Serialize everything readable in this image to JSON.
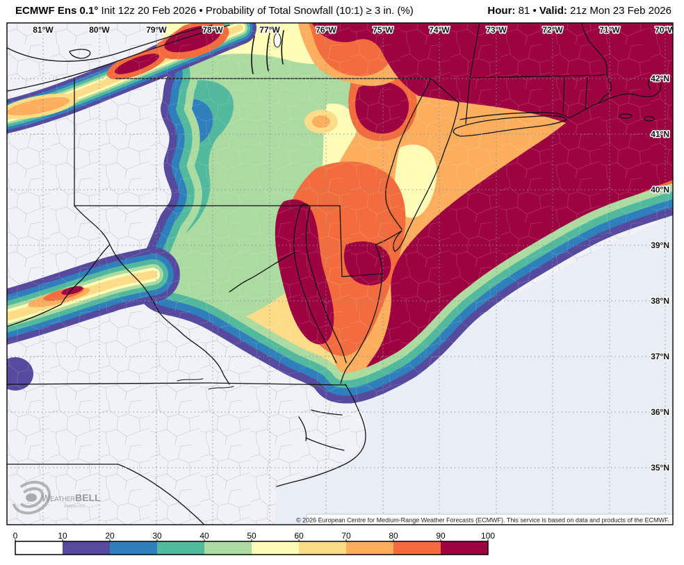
{
  "header": {
    "model_bold": "ECMWF Ens 0.1°",
    "init_text": " Init 12z 20 Feb 2026 • Probability of Total Snowfall (10:1) ≥ 3 in. (%)",
    "hour_label": "Hour:",
    "hour_value": " 81 ",
    "sep": "• ",
    "valid_label": "Valid:",
    "valid_value": " 21z Mon 23 Feb 2026"
  },
  "map": {
    "lon_labels": [
      "81°W",
      "80°W",
      "79°W",
      "78°W",
      "77°W",
      "76°W",
      "75°W",
      "74°W",
      "73°W",
      "72°W",
      "71°W",
      "70°W"
    ],
    "lat_labels": [
      "42°N",
      "41°N",
      "40°N",
      "39°N",
      "38°N",
      "37°N",
      "36°N",
      "35°N"
    ],
    "copyright": "© 2026 European Centre for Medium-Range Weather Forecasts (ECMWF). This service is based on data and products of the ECMWF.",
    "watermark": {
      "w": "W",
      "eather": "EATHER",
      "bell": "BELL",
      "sub": "Analytics LLC"
    }
  },
  "colorbar": {
    "labels": [
      "0",
      "10",
      "20",
      "30",
      "40",
      "50",
      "60",
      "70",
      "80",
      "90",
      "100"
    ],
    "colors": [
      "#ffffff",
      "#564a9e",
      "#2f7fbd",
      "#50b99e",
      "#abdba1",
      "#fdfdb8",
      "#fcdc87",
      "#fbae5d",
      "#f26c3d",
      "#9e0341"
    ]
  },
  "palette": {
    "p10": "#564a9e",
    "p20": "#2f7fbd",
    "p30": "#50b99e",
    "p40": "#abdba1",
    "p50": "#fdfdb8",
    "p60": "#fcdc87",
    "p70": "#fbae5d",
    "p80": "#f26c3d",
    "p90": "#9e0341",
    "land": "#f1f2f7",
    "ocean": "#e9edf6",
    "county": "#c3c7d4",
    "grid": "#8b8f9a",
    "border": "#111111"
  }
}
